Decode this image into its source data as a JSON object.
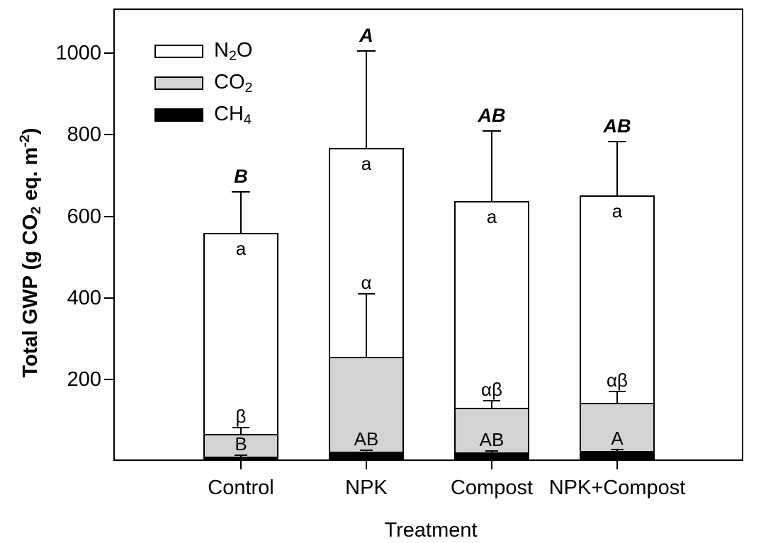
{
  "figure": {
    "background_color": "#ffffff",
    "foreground_color": "#000000"
  },
  "chart_data": {
    "type": "bar",
    "stacked": true,
    "title": "",
    "xlabel": "Treatment",
    "ylabel": "Total GWP (g CO2 eq. m-2)",
    "ylabel_parts": [
      {
        "text": "Total GWP (g CO"
      },
      {
        "text": "2",
        "style": "sub"
      },
      {
        "text": " eq. m"
      },
      {
        "text": "-2",
        "style": "sup"
      },
      {
        "text": ")"
      }
    ],
    "ylim": [
      0,
      1110
    ],
    "yticks": [
      200,
      400,
      600,
      800,
      1000
    ],
    "grid": false,
    "legend_position": "top-left",
    "categories": [
      "Control",
      "NPK",
      "Compost",
      "NPK+Compost"
    ],
    "series": [
      {
        "name": "N2O",
        "label_parts": [
          {
            "text": "N"
          },
          {
            "text": "2",
            "style": "sub"
          },
          {
            "text": "O"
          }
        ],
        "color": "#ffffff",
        "values": [
          494,
          511,
          508,
          509
        ]
      },
      {
        "name": "CO2",
        "label_parts": [
          {
            "text": "CO"
          },
          {
            "text": "2",
            "style": "sub"
          }
        ],
        "color": "#d3d3d3",
        "values": [
          56,
          234,
          110,
          119
        ]
      },
      {
        "name": "CH4",
        "label_parts": [
          {
            "text": "CH"
          },
          {
            "text": "4",
            "style": "sub"
          }
        ],
        "color": "#000000",
        "values": [
          10,
          22,
          20,
          24
        ]
      }
    ],
    "stack_tops": {
      "total": [
        560,
        767,
        638,
        652
      ],
      "co2": [
        66,
        256,
        130,
        143
      ],
      "ch4": [
        10,
        22,
        20,
        24
      ]
    },
    "error_bar_tops": {
      "total": [
        660,
        1005,
        810,
        783
      ],
      "co2": [
        82,
        410,
        148,
        170
      ],
      "ch4": [
        14,
        26,
        24,
        28
      ]
    },
    "sig_letters": {
      "total": [
        "B",
        "A",
        "AB",
        "AB"
      ],
      "n2o": [
        "a",
        "a",
        "a",
        "a"
      ],
      "co2": [
        "β",
        "α",
        "αβ",
        "αβ"
      ],
      "ch4": [
        "B",
        "AB",
        "AB",
        "A"
      ]
    }
  }
}
